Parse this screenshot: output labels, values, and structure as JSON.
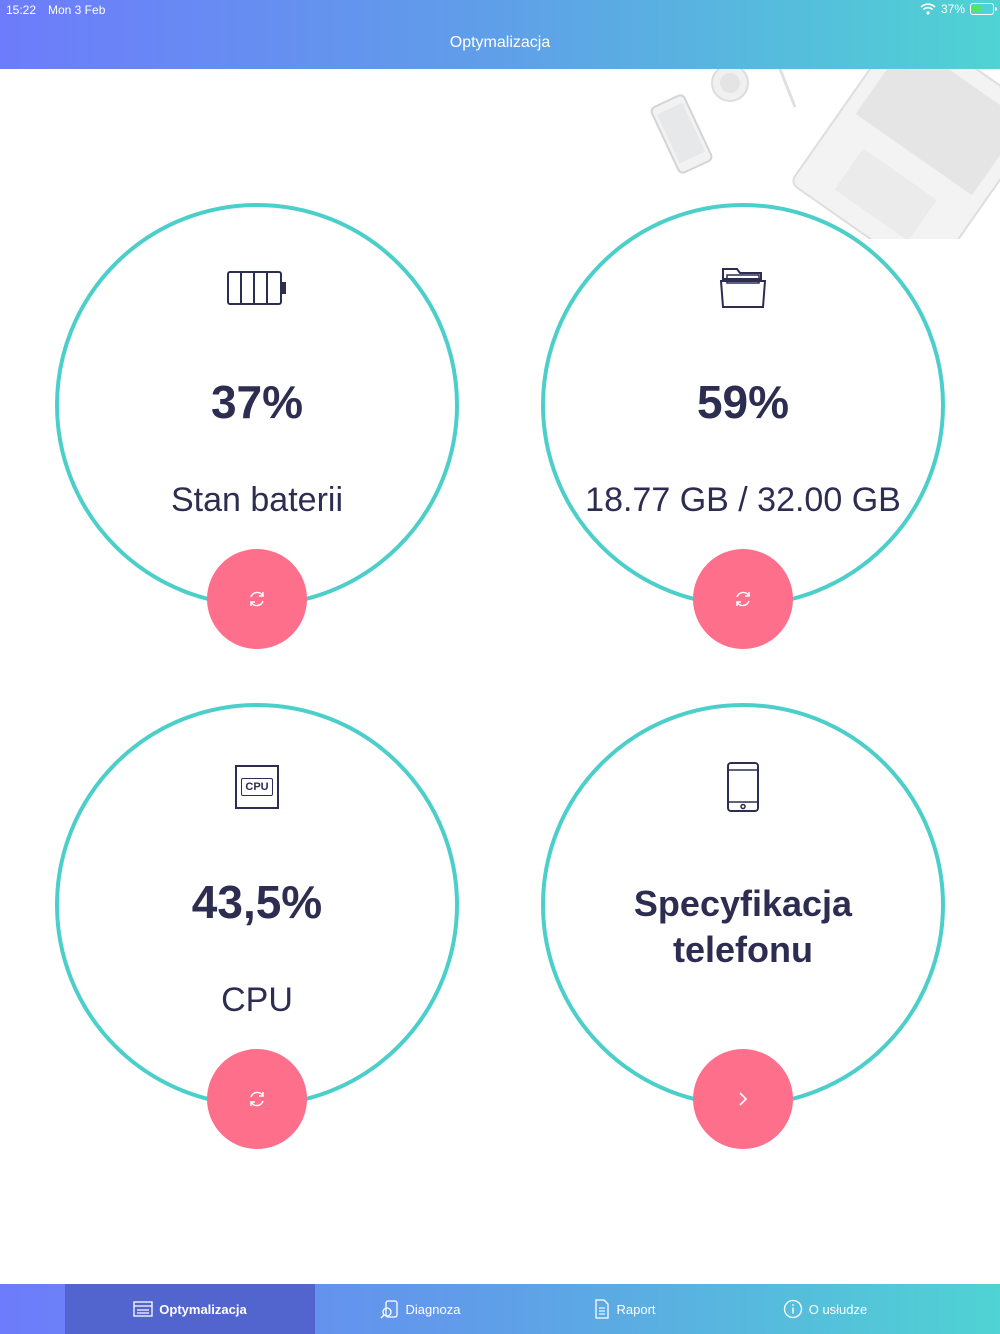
{
  "status_bar": {
    "time": "15:22",
    "date": "Mon 3 Feb",
    "battery": "37%"
  },
  "nav": {
    "title": "Optymalizacja"
  },
  "cards": {
    "battery": {
      "value": "37%",
      "label": "Stan baterii",
      "icon": "battery-icon",
      "action_icon": "refresh-icon"
    },
    "storage": {
      "value": "59%",
      "label": "18.77 GB / 32.00 GB",
      "icon": "folder-icon",
      "action_icon": "refresh-icon"
    },
    "cpu": {
      "value": "43,5%",
      "label": "CPU",
      "icon": "cpu-icon",
      "icon_text": "CPU",
      "action_icon": "refresh-icon"
    },
    "spec": {
      "title_line1": "Specyfikacja",
      "title_line2": "telefonu",
      "icon": "phone-icon",
      "action_icon": "chevron-right-icon"
    }
  },
  "tabs": [
    {
      "label": "Optymalizacja",
      "icon": "optimize-icon",
      "active": true
    },
    {
      "label": "Diagnoza",
      "icon": "diagnosis-icon",
      "active": false
    },
    {
      "label": "Raport",
      "icon": "report-icon",
      "active": false
    },
    {
      "label": "O usłudze",
      "icon": "info-icon",
      "active": false
    }
  ],
  "colors": {
    "accent_ring": "#4ccfca",
    "action_button": "#fe6f8b",
    "text_dark": "#2d2d52",
    "active_tab": "#5265cf"
  }
}
